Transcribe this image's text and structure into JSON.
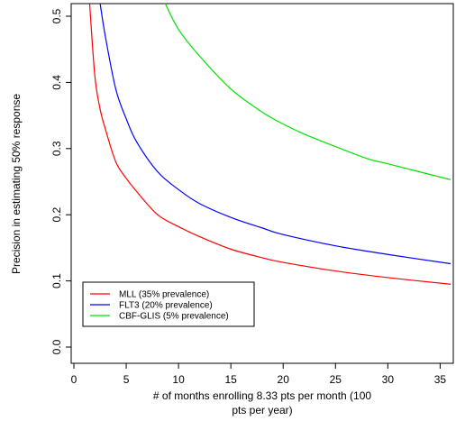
{
  "chart_data": {
    "type": "line",
    "title": "",
    "xlabel_lines": [
      "# of months enrolling 8.33 pts per month (100",
      "pts per year)"
    ],
    "ylabel": "Precision in estimating 50% response",
    "xlim": [
      0,
      36
    ],
    "ylim": [
      0,
      0.5
    ],
    "x_ticks": [
      "0",
      "5",
      "10",
      "15",
      "20",
      "25",
      "30",
      "35"
    ],
    "y_ticks": [
      "0.0",
      "0.1",
      "0.2",
      "0.3",
      "0.4",
      "0.5"
    ],
    "grid": false,
    "legend_position": "bottom-left",
    "series": [
      {
        "name": "MLL (35% prevalence)",
        "color": "#ff0000",
        "x": [
          1.5,
          2,
          2.5,
          3,
          4,
          5,
          6,
          8,
          10,
          12,
          15,
          18,
          20,
          25,
          30,
          36
        ],
        "y": [
          0.52,
          0.41,
          0.36,
          0.33,
          0.28,
          0.255,
          0.235,
          0.2,
          0.182,
          0.167,
          0.148,
          0.135,
          0.128,
          0.115,
          0.105,
          0.095
        ]
      },
      {
        "name": "FLT3 (20% prevalence)",
        "color": "#0000ff",
        "x": [
          2.5,
          3,
          4,
          5,
          6,
          8,
          10,
          12,
          15,
          18,
          20,
          25,
          30,
          36
        ],
        "y": [
          0.52,
          0.47,
          0.39,
          0.345,
          0.31,
          0.265,
          0.238,
          0.217,
          0.196,
          0.18,
          0.17,
          0.153,
          0.14,
          0.126
        ]
      },
      {
        "name": "CBF-GLIS (5% prevalence)",
        "color": "#00e000",
        "x": [
          8.7,
          10,
          12,
          15,
          18,
          20,
          22,
          25,
          28,
          30,
          33,
          36
        ],
        "y": [
          0.52,
          0.48,
          0.44,
          0.39,
          0.355,
          0.337,
          0.322,
          0.303,
          0.285,
          0.277,
          0.265,
          0.253
        ]
      }
    ]
  }
}
